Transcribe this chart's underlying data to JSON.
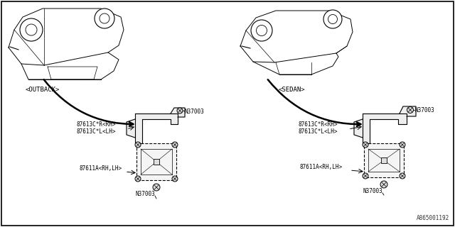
{
  "bg_color": "#ffffff",
  "border_color": "#000000",
  "watermark": "A865001192",
  "outback_label": "<OUTBACK>",
  "sedan_label": "<SEDAN>",
  "left_parts": [
    "87613C*R<RH>",
    "87613C*L<LH>"
  ],
  "right_parts": [
    "87613C*R<RH>",
    "87613C*L<LH>"
  ],
  "left_bottom_label": "87611A<RH,LH>",
  "right_bottom_label": "87611A<RH,LH>",
  "bolt_label": "N37003",
  "line_color": "#000000",
  "text_color": "#000000",
  "font_size": 6.5,
  "small_font_size": 5.5
}
